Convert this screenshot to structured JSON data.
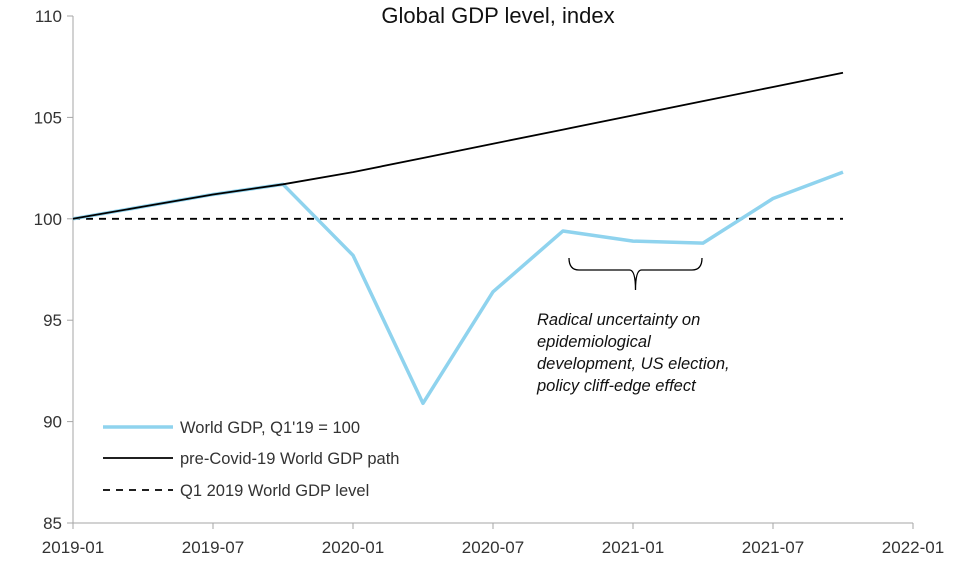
{
  "chart_data": {
    "type": "line",
    "title": "Global GDP level, index",
    "xlabel": "",
    "ylabel": "",
    "ylim": [
      85,
      110
    ],
    "yticks": [
      85,
      90,
      95,
      100,
      105,
      110
    ],
    "xlim": [
      "2019-01",
      "2022-01"
    ],
    "xticks": [
      "2019-01",
      "2019-07",
      "2020-01",
      "2020-07",
      "2021-01",
      "2021-07",
      "2022-01"
    ],
    "grid": false,
    "legend_position": "bottom-left",
    "series": [
      {
        "name": "World GDP, Q1'19 = 100",
        "color": "#8fd3ee",
        "style": "solid",
        "x": [
          "2019-01",
          "2019-04",
          "2019-07",
          "2019-10",
          "2020-01",
          "2020-04",
          "2020-07",
          "2020-10",
          "2021-01",
          "2021-04",
          "2021-07",
          "2021-10"
        ],
        "values": [
          100.0,
          100.6,
          101.2,
          101.7,
          98.2,
          90.9,
          96.4,
          99.4,
          98.9,
          98.8,
          101.0,
          102.3
        ]
      },
      {
        "name": "pre-Covid-19 World GDP path",
        "color": "#000000",
        "style": "solid",
        "x": [
          "2019-01",
          "2019-04",
          "2019-07",
          "2019-10",
          "2020-01",
          "2020-04",
          "2020-07",
          "2020-10",
          "2021-01",
          "2021-04",
          "2021-07",
          "2021-10"
        ],
        "values": [
          100.0,
          100.6,
          101.2,
          101.7,
          102.3,
          103.0,
          103.7,
          104.4,
          105.1,
          105.8,
          106.5,
          107.2
        ]
      },
      {
        "name": "Q1 2019 World GDP level",
        "color": "#000000",
        "style": "dashed",
        "x": [
          "2019-01",
          "2021-10"
        ],
        "values": [
          100,
          100
        ]
      }
    ],
    "annotation": {
      "lines": [
        "Radical uncertainty on",
        "epidemiological",
        "development, US election,",
        "policy cliff-edge effect"
      ],
      "bracket_x": [
        "2020-10",
        "2021-04"
      ]
    }
  }
}
